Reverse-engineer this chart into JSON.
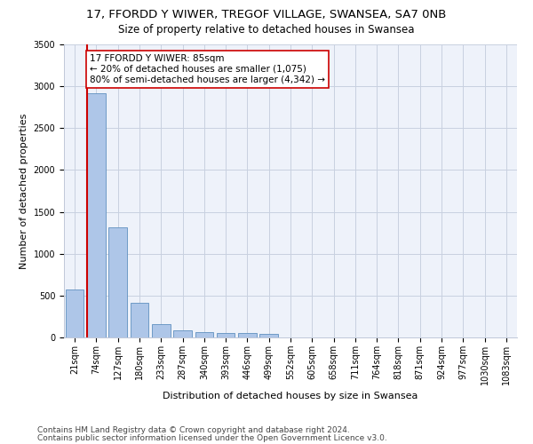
{
  "title": "17, FFORDD Y WIWER, TREGOF VILLAGE, SWANSEA, SA7 0NB",
  "subtitle": "Size of property relative to detached houses in Swansea",
  "xlabel": "Distribution of detached houses by size in Swansea",
  "ylabel": "Number of detached properties",
  "categories": [
    "21sqm",
    "74sqm",
    "127sqm",
    "180sqm",
    "233sqm",
    "287sqm",
    "340sqm",
    "393sqm",
    "446sqm",
    "499sqm",
    "552sqm",
    "605sqm",
    "658sqm",
    "711sqm",
    "764sqm",
    "818sqm",
    "871sqm",
    "924sqm",
    "977sqm",
    "1030sqm",
    "1083sqm"
  ],
  "bar_heights": [
    570,
    2920,
    1310,
    410,
    155,
    85,
    65,
    55,
    50,
    40,
    0,
    0,
    0,
    0,
    0,
    0,
    0,
    0,
    0,
    0,
    0
  ],
  "bar_color": "#aec6e8",
  "bar_edge_color": "#6090c0",
  "property_line_color": "#cc0000",
  "annotation_line1": "17 FFORDD Y WIWER: 85sqm",
  "annotation_line2": "← 20% of detached houses are smaller (1,075)",
  "annotation_line3": "80% of semi-detached houses are larger (4,342) →",
  "annotation_box_color": "#cc0000",
  "ylim": [
    0,
    3500
  ],
  "yticks": [
    0,
    500,
    1000,
    1500,
    2000,
    2500,
    3000,
    3500
  ],
  "background_color": "#eef2fa",
  "grid_color": "#c8d0e0",
  "footer_line1": "Contains HM Land Registry data © Crown copyright and database right 2024.",
  "footer_line2": "Contains public sector information licensed under the Open Government Licence v3.0.",
  "title_fontsize": 9.5,
  "subtitle_fontsize": 8.5,
  "xlabel_fontsize": 8,
  "ylabel_fontsize": 8,
  "tick_fontsize": 7,
  "annotation_fontsize": 7.5,
  "footer_fontsize": 6.5
}
